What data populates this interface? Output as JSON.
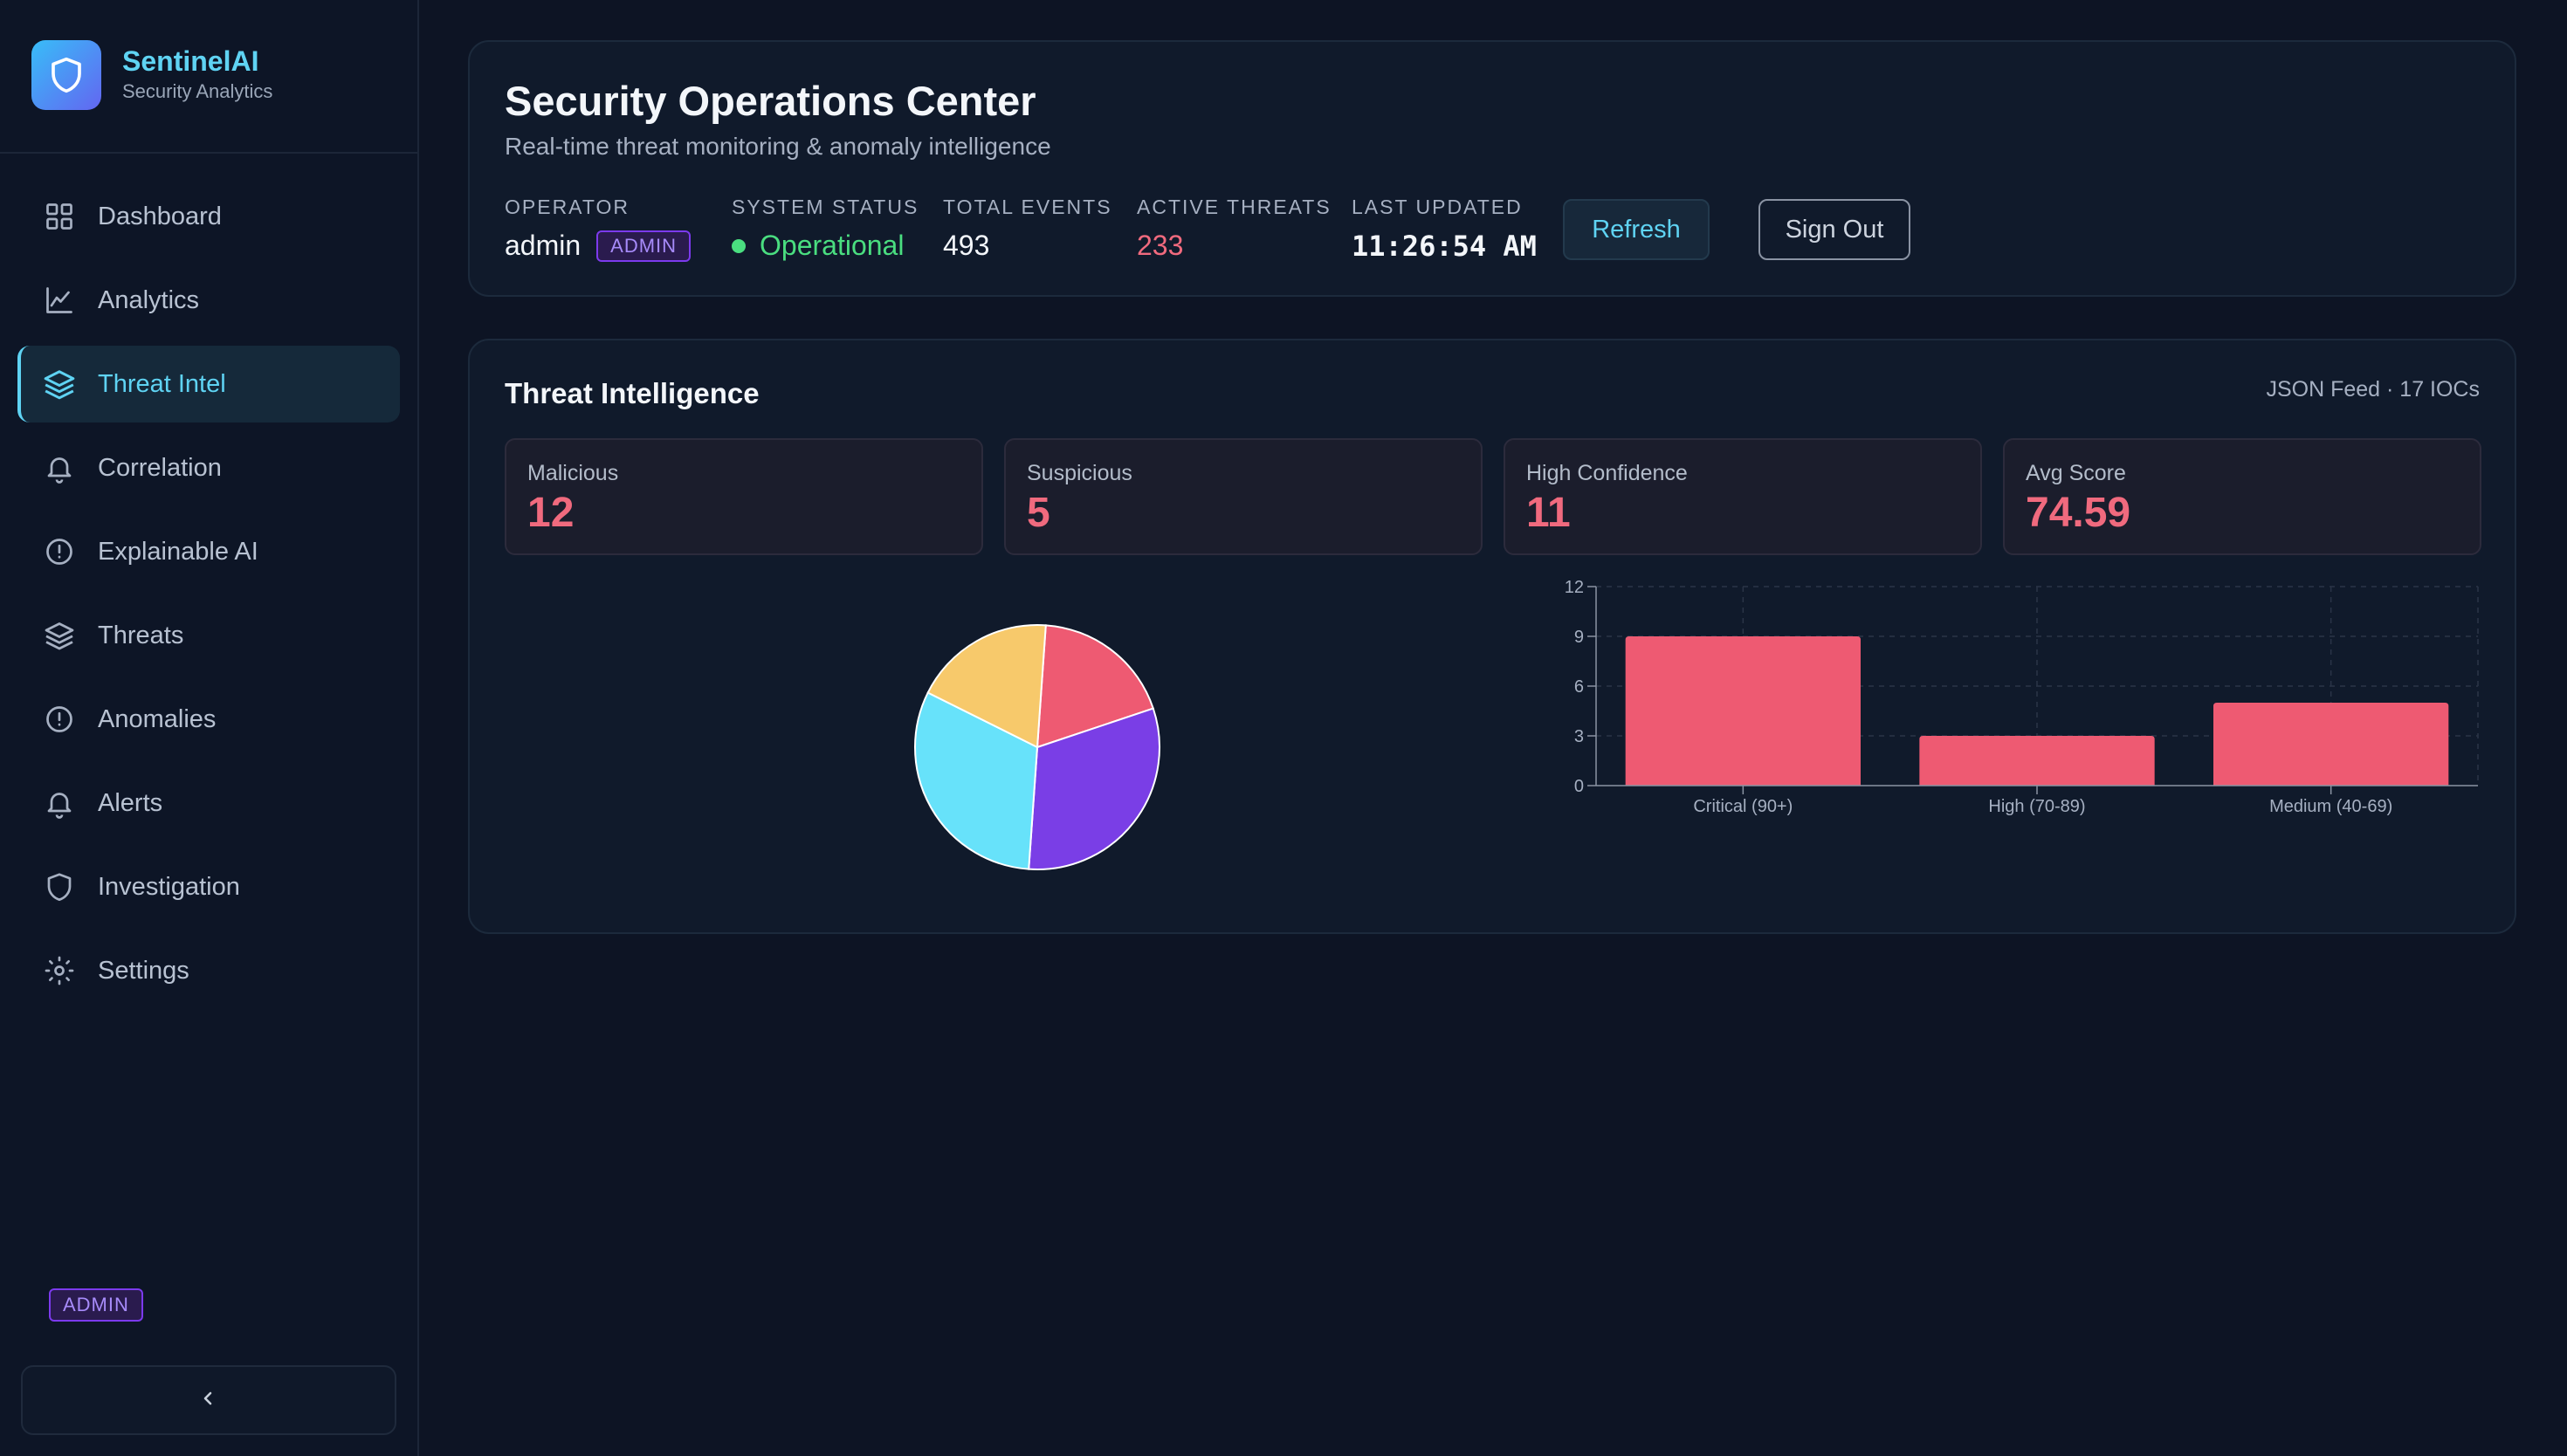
{
  "brand": {
    "name": "SentinelAI",
    "subtitle": "Security Analytics"
  },
  "sidebar": {
    "items": [
      {
        "label": "Dashboard",
        "icon": "grid-icon"
      },
      {
        "label": "Analytics",
        "icon": "line-chart-icon"
      },
      {
        "label": "Threat Intel",
        "icon": "layers-icon",
        "active": true
      },
      {
        "label": "Correlation",
        "icon": "bell-icon"
      },
      {
        "label": "Explainable AI",
        "icon": "alert-circle-icon"
      },
      {
        "label": "Threats",
        "icon": "layers-icon"
      },
      {
        "label": "Anomalies",
        "icon": "alert-circle-icon"
      },
      {
        "label": "Alerts",
        "icon": "bell-icon"
      },
      {
        "label": "Investigation",
        "icon": "shield-icon"
      },
      {
        "label": "Settings",
        "icon": "gear-icon"
      }
    ],
    "badge": "ADMIN"
  },
  "header": {
    "title": "Security Operations Center",
    "subtitle": "Real-time threat monitoring & anomaly intelligence",
    "operator_label": "OPERATOR",
    "operator_value": "admin",
    "operator_role": "ADMIN",
    "status_label": "SYSTEM STATUS",
    "status_value": "Operational",
    "events_label": "TOTAL EVENTS",
    "events_value": "493",
    "threats_label": "ACTIVE THREATS",
    "threats_value": "233",
    "updated_label": "LAST UPDATED",
    "updated_value": "11:26:54 AM",
    "refresh_label": "Refresh",
    "signout_label": "Sign Out"
  },
  "threat_intel": {
    "title": "Threat Intelligence",
    "feed": "JSON Feed · 17 IOCs",
    "metrics": [
      {
        "label": "Malicious",
        "value": "12"
      },
      {
        "label": "Suspicious",
        "value": "5"
      },
      {
        "label": "High Confidence",
        "value": "11"
      },
      {
        "label": "Avg Score",
        "value": "74.59"
      }
    ]
  },
  "colors": {
    "accent": "#5fd3f3",
    "danger": "#f06a7e",
    "success": "#4ade80",
    "purple": "#7c3aed",
    "yellow": "#f7c96b",
    "cyan": "#67e2fa"
  },
  "chart_data": [
    {
      "type": "pie",
      "values": [
        3,
        5,
        5,
        3
      ],
      "colors": [
        "#ee5a72",
        "#7a3ee6",
        "#67e2fa",
        "#f7c96b"
      ]
    },
    {
      "type": "bar",
      "categories": [
        "Critical (90+)",
        "High (70-89)",
        "Medium (40-69)"
      ],
      "values": [
        9,
        3,
        5
      ],
      "ylim": [
        0,
        12
      ],
      "yticks": [
        0,
        3,
        6,
        9,
        12
      ],
      "grid": true,
      "color": "#ee5a72"
    }
  ]
}
